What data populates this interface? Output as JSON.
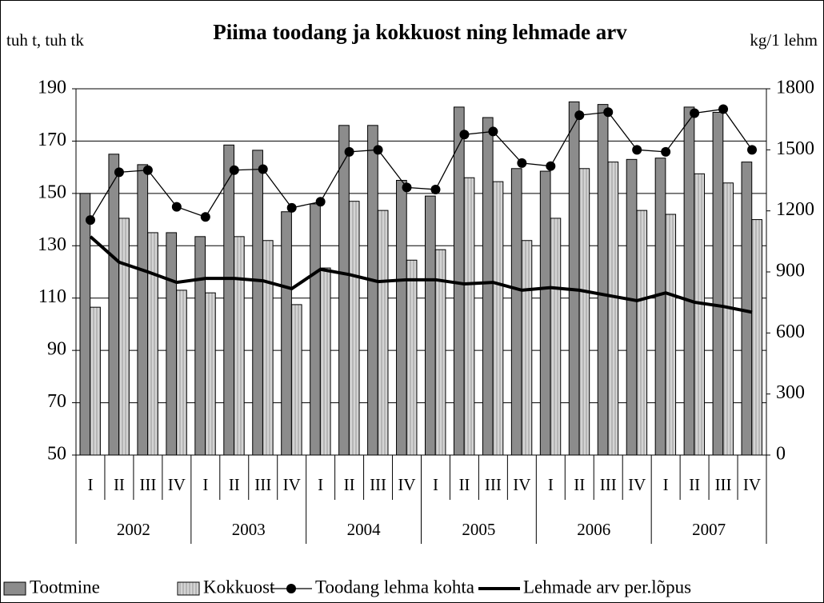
{
  "chart_data": {
    "type": "bar-line",
    "title": "Piima toodang ja kokkuost ning lehmade arv",
    "y_label": "tuh t, tuh tk",
    "y2_label": "kg/1 lehm",
    "categories": [
      "I",
      "II",
      "III",
      "IV",
      "I",
      "II",
      "III",
      "IV",
      "I",
      "II",
      "III",
      "IV",
      "I",
      "II",
      "III",
      "IV",
      "I",
      "II",
      "III",
      "IV",
      "I",
      "II",
      "III",
      "IV"
    ],
    "year_groups": [
      "2002",
      "2003",
      "2004",
      "2005",
      "2006",
      "2007"
    ],
    "ylim": [
      50,
      190
    ],
    "yticks": [
      50,
      70,
      90,
      110,
      130,
      150,
      170,
      190
    ],
    "y2lim": [
      0,
      1800
    ],
    "y2ticks": [
      0,
      300,
      600,
      900,
      1200,
      1500,
      1800
    ],
    "grid": true,
    "legend": "bottom",
    "series": [
      {
        "name": "Tootmine",
        "kind": "bar",
        "color": "#8c8c8c",
        "values": [
          150,
          165,
          161,
          135,
          133.5,
          168.5,
          166.5,
          143,
          146,
          176,
          176,
          155,
          149,
          183,
          179,
          159.5,
          158.5,
          185,
          184,
          163,
          163.5,
          183,
          181,
          162
        ]
      },
      {
        "name": "Kokkuost",
        "kind": "bar",
        "color": "#d4d4d4",
        "values": [
          106.5,
          140.5,
          135,
          113,
          112,
          133.5,
          132,
          107.5,
          121.5,
          147,
          143.5,
          124.5,
          128.5,
          156,
          154.5,
          132,
          140.5,
          159.5,
          162,
          143.5,
          142,
          157.5,
          154,
          140
        ]
      },
      {
        "name": "Toodang lehma kohta",
        "kind": "line",
        "axis": "y2",
        "color": "#000000",
        "marker": true,
        "values": [
          1155,
          1390,
          1400,
          1220,
          1170,
          1400,
          1405,
          1215,
          1245,
          1490,
          1500,
          1315,
          1305,
          1575,
          1590,
          1435,
          1420,
          1670,
          1685,
          1500,
          1490,
          1680,
          1700,
          1500
        ]
      },
      {
        "name": "Lehmade arv per.lõpus",
        "kind": "line",
        "color": "#000000",
        "marker": false,
        "values": [
          133.5,
          123.7,
          120,
          116,
          117.5,
          117.5,
          116.6,
          113.6,
          121,
          119,
          116.3,
          117,
          117,
          115.4,
          116,
          113,
          114,
          113,
          111,
          109,
          112,
          108.4,
          106.8,
          104.6
        ]
      }
    ]
  }
}
